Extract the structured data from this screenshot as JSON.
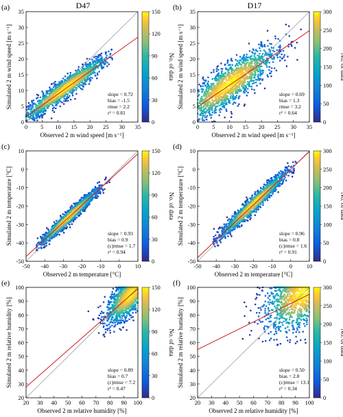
{
  "figure": {
    "column_titles": [
      "D47",
      "D17"
    ],
    "colorbar_label": "No. of data"
  },
  "chart_data": [
    {
      "panel": "(a)",
      "type": "scatter",
      "subtype": "density",
      "xlabel": "Observed 2 m wind speed [m s⁻¹]",
      "ylabel": "Simulated 2 m wind speed [m s⁻¹]",
      "xlim": [
        0,
        35
      ],
      "ylim": [
        0,
        35
      ],
      "xticks": [
        0,
        5,
        10,
        15,
        20,
        25,
        30,
        35
      ],
      "yticks": [
        0,
        5,
        10,
        15,
        20,
        25,
        30,
        35
      ],
      "colorbar": {
        "label": "No. of data",
        "range": [
          0,
          150
        ],
        "ticks": [
          0,
          30,
          60,
          90,
          120,
          150
        ]
      },
      "stats": [
        "slope = 0.72",
        "bias = -1.5",
        "rmse = 2.2",
        "r² = 0.81"
      ],
      "regression": {
        "slope": 0.72,
        "intercept": 1.7
      },
      "one_to_one": true,
      "density": {
        "x_range": [
          0,
          27
        ],
        "center": [
          12,
          10.5
        ],
        "slope": 0.72,
        "spread": 1.6,
        "sx": 7.0
      }
    },
    {
      "panel": "(b)",
      "type": "scatter",
      "subtype": "density",
      "xlabel": "Observed 2 m wind speed [m s⁻¹]",
      "ylabel": "Simulated 2 m wind speed [m s⁻¹]",
      "xlim": [
        0,
        35
      ],
      "ylim": [
        0,
        35
      ],
      "xticks": [
        0,
        5,
        10,
        15,
        20,
        25,
        30,
        35
      ],
      "yticks": [
        0,
        5,
        10,
        15,
        20,
        25,
        30,
        35
      ],
      "colorbar": {
        "label": "No. of data",
        "range": [
          0,
          300
        ],
        "ticks": [
          0,
          50,
          100,
          150,
          200,
          250,
          300
        ]
      },
      "stats": [
        "slope = 0.69",
        "bias = 1.3",
        "rmse = 3.2",
        "r² = 0.64"
      ],
      "regression": {
        "slope": 0.69,
        "intercept": 4.8
      },
      "one_to_one": true,
      "density": {
        "x_range": [
          0,
          33
        ],
        "center": [
          10,
          12
        ],
        "slope": 0.69,
        "spread": 3.2,
        "sx": 7.5
      }
    },
    {
      "panel": "(c)",
      "type": "scatter",
      "subtype": "density",
      "xlabel": "Observed 2 m temperature [°C]",
      "ylabel": "Simulated 2 m temperature [°C]",
      "xlim": [
        -50,
        10
      ],
      "ylim": [
        -50,
        10
      ],
      "xticks": [
        -50,
        -40,
        -30,
        -20,
        -10,
        0,
        10
      ],
      "yticks": [
        -50,
        -40,
        -30,
        -20,
        -10,
        0,
        10
      ],
      "colorbar": {
        "label": "No. of data",
        "range": [
          0,
          150
        ],
        "ticks": [
          0,
          30,
          60,
          90,
          120,
          150
        ]
      },
      "stats": [
        "slope = 0.93",
        "bias = 0.9",
        "(c)rmse = 1.7",
        "r² = 0.94"
      ],
      "regression": {
        "slope": 0.93,
        "intercept": -0.9
      },
      "one_to_one": true,
      "density": {
        "x_range": [
          -45,
          -5
        ],
        "center": [
          -27,
          -26
        ],
        "slope": 0.93,
        "spread": 1.8,
        "sx": 8.0
      }
    },
    {
      "panel": "(d)",
      "type": "scatter",
      "subtype": "density",
      "xlabel": "Observed 2 m temperature [°C]",
      "ylabel": "Simulated 2 m temperature [°C]",
      "xlim": [
        -50,
        10
      ],
      "ylim": [
        -50,
        10
      ],
      "xticks": [
        -50,
        -40,
        -30,
        -20,
        -10,
        0,
        10
      ],
      "yticks": [
        -50,
        -40,
        -30,
        -20,
        -10,
        0,
        10
      ],
      "colorbar": {
        "label": "No. of data",
        "range": [
          0,
          300
        ],
        "ticks": [
          0,
          50,
          100,
          150,
          200,
          250,
          300
        ]
      },
      "stats": [
        "slope = 0.96",
        "bias = 0.8",
        "(c)rmse = 1.6",
        "r² = 0.91"
      ],
      "regression": {
        "slope": 0.96,
        "intercept": 0.0
      },
      "one_to_one": true,
      "density": {
        "x_range": [
          -42,
          3
        ],
        "center": [
          -20,
          -19
        ],
        "slope": 0.96,
        "spread": 2.2,
        "sx": 9.0
      }
    },
    {
      "panel": "(e)",
      "type": "scatter",
      "subtype": "density",
      "xlabel": "Observed 2 m relative humidity [%]",
      "ylabel": "Simulated 2 m relative humidity [%]",
      "xlim": [
        20,
        100
      ],
      "ylim": [
        20,
        100
      ],
      "xticks": [
        20,
        30,
        40,
        50,
        60,
        70,
        80,
        90,
        100
      ],
      "yticks": [
        20,
        30,
        40,
        50,
        60,
        70,
        80,
        90,
        100
      ],
      "colorbar": {
        "label": "No. of data",
        "range": [
          0,
          150
        ],
        "ticks": [
          0,
          30,
          60,
          90,
          120,
          150
        ]
      },
      "stats": [
        "slope = 0.89",
        "bias = 0.7",
        "(c)rmse = 7.2",
        "r² = 0.47"
      ],
      "regression": {
        "slope": 0.89,
        "intercept": 10.0
      },
      "one_to_one": true,
      "density": {
        "x_range": [
          50,
          100
        ],
        "center": [
          95,
          95
        ],
        "slope": 0.89,
        "spread": 7.0,
        "sx": 9.0
      }
    },
    {
      "panel": "(f)",
      "type": "scatter",
      "subtype": "density",
      "xlabel": "Observed 2 m relative humidity [%]",
      "ylabel": "Simulated 2 m relative humidity [%]",
      "xlim": [
        20,
        100
      ],
      "ylim": [
        20,
        100
      ],
      "xticks": [
        20,
        30,
        40,
        50,
        60,
        70,
        80,
        90,
        100
      ],
      "yticks": [
        20,
        30,
        40,
        50,
        60,
        70,
        80,
        90,
        100
      ],
      "colorbar": {
        "label": "No. of data",
        "range": [
          0,
          300
        ],
        "ticks": [
          0,
          50,
          100,
          150,
          200,
          250,
          300
        ]
      },
      "stats": [
        "slope = 0.50",
        "bias = 2.8",
        "(c)rmse = 13.1",
        "r² = 0.34"
      ],
      "regression": {
        "slope": 0.5,
        "intercept": 45.0
      },
      "one_to_one": true,
      "density": {
        "x_range": [
          30,
          100
        ],
        "center": [
          96,
          96
        ],
        "slope": 0.5,
        "spread": 12.0,
        "sx": 14.0
      }
    }
  ]
}
